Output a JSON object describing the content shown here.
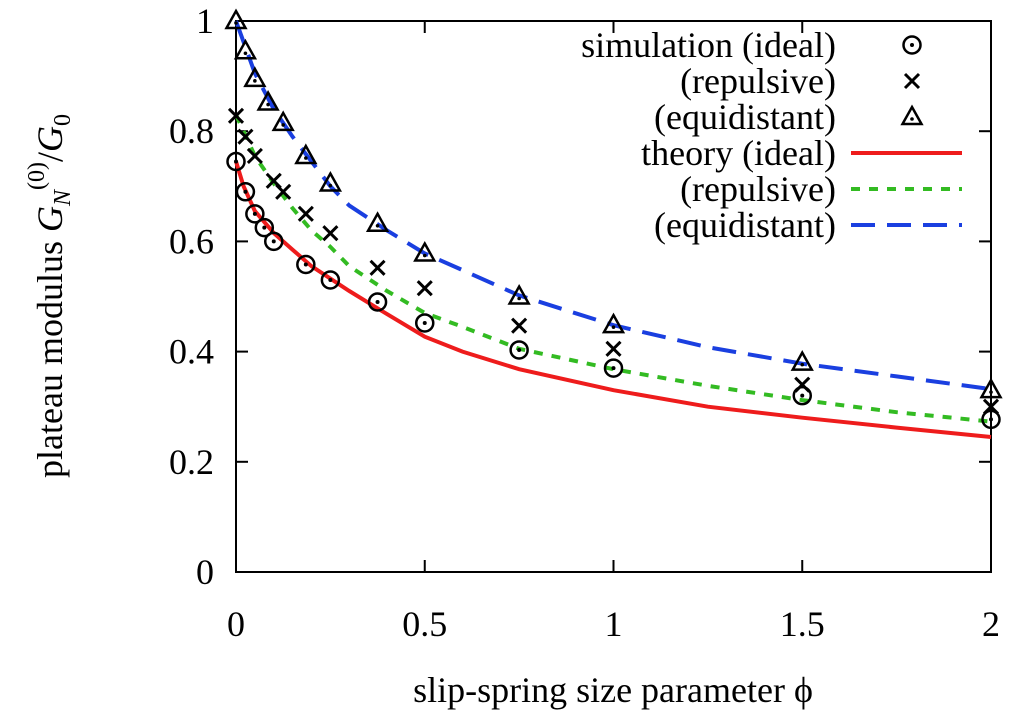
{
  "chart_data": {
    "type": "line",
    "xlabel": "slip-spring size parameter ϕ",
    "ylabel": {
      "prefix": "plateau modulus ",
      "g": "G",
      "sub_n": "N",
      "sup": "(0)",
      "slash": "/",
      "g0": "G",
      "sub_0": "0"
    },
    "xlim": [
      0,
      2
    ],
    "ylim": [
      0,
      1
    ],
    "x_ticks": [
      {
        "value": 0,
        "label": "0"
      },
      {
        "value": 0.5,
        "label": "0.5"
      },
      {
        "value": 1,
        "label": "1"
      },
      {
        "value": 1.5,
        "label": "1.5"
      },
      {
        "value": 2,
        "label": "2"
      }
    ],
    "y_ticks": [
      {
        "value": 0,
        "label": "0"
      },
      {
        "value": 0.2,
        "label": "0.2"
      },
      {
        "value": 0.4,
        "label": "0.4"
      },
      {
        "value": 0.6,
        "label": "0.6"
      },
      {
        "value": 0.8,
        "label": "0.8"
      },
      {
        "value": 1,
        "label": "1"
      }
    ],
    "grid": false,
    "legend_position": "top-right",
    "scatter_series": [
      {
        "name": "simulation (ideal)",
        "marker": "circle-dot",
        "color": "#000000",
        "points": [
          [
            0,
            0.745
          ],
          [
            0.025,
            0.69
          ],
          [
            0.05,
            0.65
          ],
          [
            0.075,
            0.625
          ],
          [
            0.1,
            0.6
          ],
          [
            0.185,
            0.558
          ],
          [
            0.25,
            0.53
          ],
          [
            0.375,
            0.49
          ],
          [
            0.5,
            0.452
          ],
          [
            0.75,
            0.403
          ],
          [
            1.0,
            0.37
          ],
          [
            1.5,
            0.32
          ],
          [
            2.0,
            0.277
          ]
        ]
      },
      {
        "name": "(repulsive)",
        "marker": "cross",
        "color": "#000000",
        "points": [
          [
            0,
            0.828
          ],
          [
            0.025,
            0.79
          ],
          [
            0.05,
            0.755
          ],
          [
            0.1,
            0.71
          ],
          [
            0.125,
            0.69
          ],
          [
            0.185,
            0.65
          ],
          [
            0.25,
            0.615
          ],
          [
            0.375,
            0.552
          ],
          [
            0.5,
            0.515
          ],
          [
            0.75,
            0.447
          ],
          [
            1.0,
            0.405
          ],
          [
            1.5,
            0.34
          ],
          [
            2.0,
            0.3
          ]
        ]
      },
      {
        "name": "(equidistant)",
        "marker": "triangle-dot",
        "color": "#000000",
        "points": [
          [
            0,
            1.0
          ],
          [
            0.025,
            0.945
          ],
          [
            0.05,
            0.895
          ],
          [
            0.085,
            0.852
          ],
          [
            0.125,
            0.815
          ],
          [
            0.185,
            0.755
          ],
          [
            0.25,
            0.705
          ],
          [
            0.375,
            0.632
          ],
          [
            0.5,
            0.578
          ],
          [
            0.75,
            0.5
          ],
          [
            1.0,
            0.448
          ],
          [
            1.5,
            0.38
          ],
          [
            2.0,
            0.33
          ]
        ]
      }
    ],
    "line_series": [
      {
        "name": "theory (ideal)",
        "style": "solid",
        "color": "#ee1c1c",
        "points": [
          [
            0,
            0.745
          ],
          [
            0.02,
            0.7
          ],
          [
            0.05,
            0.655
          ],
          [
            0.1,
            0.615
          ],
          [
            0.15,
            0.585
          ],
          [
            0.2,
            0.555
          ],
          [
            0.3,
            0.51
          ],
          [
            0.4,
            0.468
          ],
          [
            0.5,
            0.427
          ],
          [
            0.6,
            0.4
          ],
          [
            0.75,
            0.368
          ],
          [
            1.0,
            0.33
          ],
          [
            1.25,
            0.3
          ],
          [
            1.5,
            0.28
          ],
          [
            1.75,
            0.262
          ],
          [
            2.0,
            0.245
          ]
        ]
      },
      {
        "name": "(repulsive)",
        "style": "dotted",
        "color": "#33bb22",
        "points": [
          [
            0,
            0.83
          ],
          [
            0.05,
            0.755
          ],
          [
            0.1,
            0.705
          ],
          [
            0.15,
            0.66
          ],
          [
            0.2,
            0.62
          ],
          [
            0.25,
            0.59
          ],
          [
            0.3,
            0.555
          ],
          [
            0.4,
            0.51
          ],
          [
            0.5,
            0.47
          ],
          [
            0.6,
            0.445
          ],
          [
            0.75,
            0.405
          ],
          [
            1.0,
            0.368
          ],
          [
            1.25,
            0.338
          ],
          [
            1.5,
            0.312
          ],
          [
            1.75,
            0.29
          ],
          [
            2.0,
            0.273
          ]
        ]
      },
      {
        "name": "(equidistant)",
        "style": "dashed",
        "color": "#1a3fe0",
        "points": [
          [
            0,
            1.0
          ],
          [
            0.05,
            0.905
          ],
          [
            0.1,
            0.84
          ],
          [
            0.15,
            0.79
          ],
          [
            0.2,
            0.745
          ],
          [
            0.25,
            0.7
          ],
          [
            0.3,
            0.665
          ],
          [
            0.4,
            0.62
          ],
          [
            0.5,
            0.578
          ],
          [
            0.6,
            0.548
          ],
          [
            0.75,
            0.502
          ],
          [
            1.0,
            0.448
          ],
          [
            1.25,
            0.408
          ],
          [
            1.5,
            0.378
          ],
          [
            1.75,
            0.355
          ],
          [
            2.0,
            0.332
          ]
        ]
      }
    ]
  }
}
